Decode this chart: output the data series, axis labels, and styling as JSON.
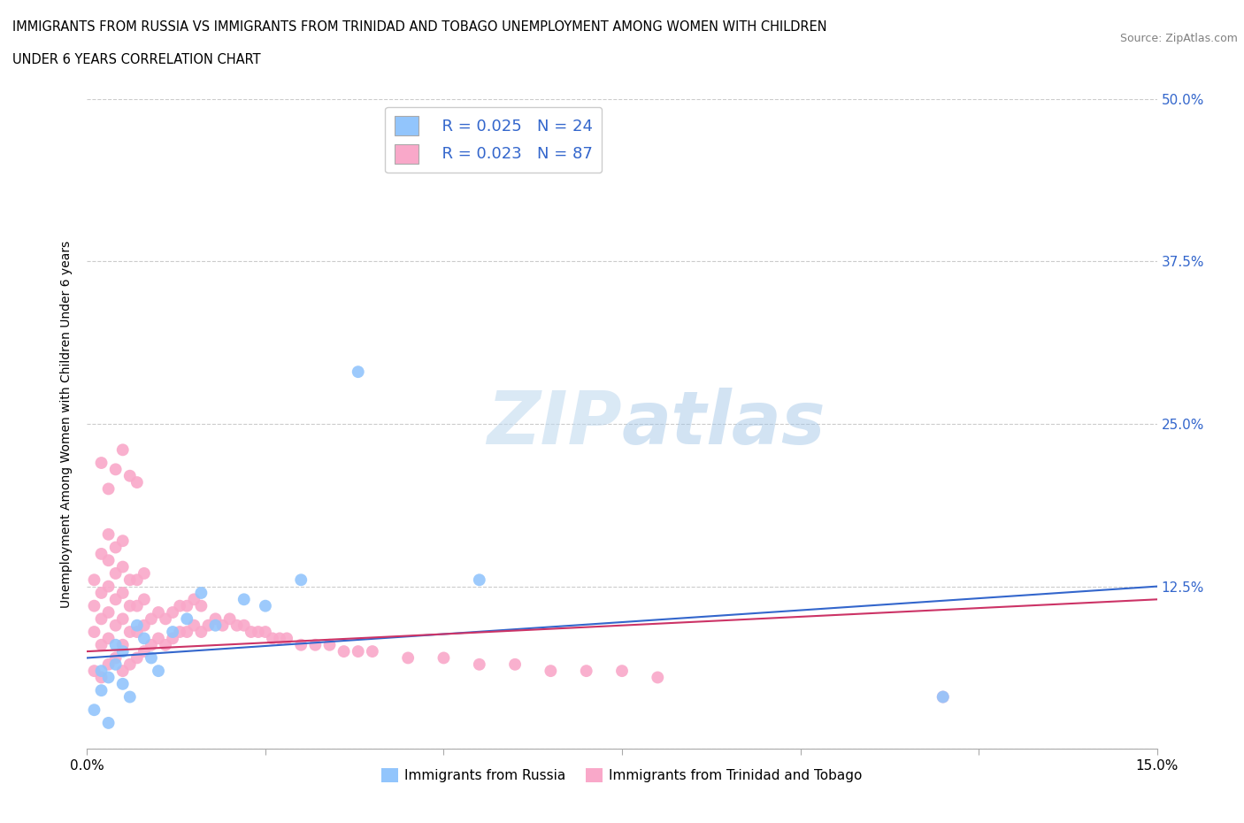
{
  "title_line1": "IMMIGRANTS FROM RUSSIA VS IMMIGRANTS FROM TRINIDAD AND TOBAGO UNEMPLOYMENT AMONG WOMEN WITH CHILDREN",
  "title_line2": "UNDER 6 YEARS CORRELATION CHART",
  "source_text": "Source: ZipAtlas.com",
  "ylabel": "Unemployment Among Women with Children Under 6 years",
  "xlim": [
    0.0,
    0.15
  ],
  "ylim": [
    0.0,
    0.5
  ],
  "xticks": [
    0.0,
    0.025,
    0.05,
    0.075,
    0.1,
    0.125,
    0.15
  ],
  "xticklabels": [
    "0.0%",
    "",
    "",
    "",
    "",
    "",
    "15.0%"
  ],
  "yticks": [
    0.0,
    0.125,
    0.25,
    0.375,
    0.5
  ],
  "yticklabels_left": [
    "",
    "",
    "",
    "",
    ""
  ],
  "yticklabels_right": [
    "",
    "12.5%",
    "25.0%",
    "37.5%",
    "50.0%"
  ],
  "russia_R": 0.025,
  "russia_N": 24,
  "tt_R": 0.023,
  "tt_N": 87,
  "russia_color": "#92C5FC",
  "tt_color": "#F9A8C9",
  "russia_trend_color": "#3366CC",
  "tt_trend_color": "#CC3366",
  "grid_color": "#CCCCCC",
  "background_color": "#FFFFFF",
  "legend_russia_label": "Immigrants from Russia",
  "legend_tt_label": "Immigrants from Trinidad and Tobago",
  "russia_x": [
    0.001,
    0.002,
    0.002,
    0.003,
    0.003,
    0.004,
    0.004,
    0.005,
    0.005,
    0.006,
    0.007,
    0.008,
    0.009,
    0.01,
    0.012,
    0.014,
    0.016,
    0.018,
    0.022,
    0.025,
    0.03,
    0.038,
    0.055,
    0.12
  ],
  "russia_y": [
    0.03,
    0.045,
    0.06,
    0.02,
    0.055,
    0.065,
    0.08,
    0.05,
    0.075,
    0.04,
    0.095,
    0.085,
    0.07,
    0.06,
    0.09,
    0.1,
    0.12,
    0.095,
    0.115,
    0.11,
    0.13,
    0.29,
    0.13,
    0.04
  ],
  "tt_x": [
    0.001,
    0.001,
    0.001,
    0.001,
    0.002,
    0.002,
    0.002,
    0.002,
    0.002,
    0.003,
    0.003,
    0.003,
    0.003,
    0.003,
    0.003,
    0.004,
    0.004,
    0.004,
    0.004,
    0.004,
    0.005,
    0.005,
    0.005,
    0.005,
    0.005,
    0.005,
    0.006,
    0.006,
    0.006,
    0.006,
    0.007,
    0.007,
    0.007,
    0.007,
    0.008,
    0.008,
    0.008,
    0.008,
    0.009,
    0.009,
    0.01,
    0.01,
    0.011,
    0.011,
    0.012,
    0.012,
    0.013,
    0.013,
    0.014,
    0.014,
    0.015,
    0.015,
    0.016,
    0.016,
    0.017,
    0.018,
    0.019,
    0.02,
    0.021,
    0.022,
    0.023,
    0.024,
    0.025,
    0.026,
    0.027,
    0.028,
    0.03,
    0.032,
    0.034,
    0.036,
    0.038,
    0.04,
    0.045,
    0.05,
    0.055,
    0.06,
    0.065,
    0.07,
    0.075,
    0.08,
    0.002,
    0.003,
    0.004,
    0.005,
    0.006,
    0.007,
    0.12
  ],
  "tt_y": [
    0.06,
    0.09,
    0.11,
    0.13,
    0.055,
    0.08,
    0.1,
    0.12,
    0.15,
    0.065,
    0.085,
    0.105,
    0.125,
    0.145,
    0.165,
    0.07,
    0.095,
    0.115,
    0.135,
    0.155,
    0.06,
    0.08,
    0.1,
    0.12,
    0.14,
    0.16,
    0.065,
    0.09,
    0.11,
    0.13,
    0.07,
    0.09,
    0.11,
    0.13,
    0.075,
    0.095,
    0.115,
    0.135,
    0.08,
    0.1,
    0.085,
    0.105,
    0.08,
    0.1,
    0.085,
    0.105,
    0.09,
    0.11,
    0.09,
    0.11,
    0.095,
    0.115,
    0.09,
    0.11,
    0.095,
    0.1,
    0.095,
    0.1,
    0.095,
    0.095,
    0.09,
    0.09,
    0.09,
    0.085,
    0.085,
    0.085,
    0.08,
    0.08,
    0.08,
    0.075,
    0.075,
    0.075,
    0.07,
    0.07,
    0.065,
    0.065,
    0.06,
    0.06,
    0.06,
    0.055,
    0.22,
    0.2,
    0.215,
    0.23,
    0.21,
    0.205,
    0.04
  ]
}
